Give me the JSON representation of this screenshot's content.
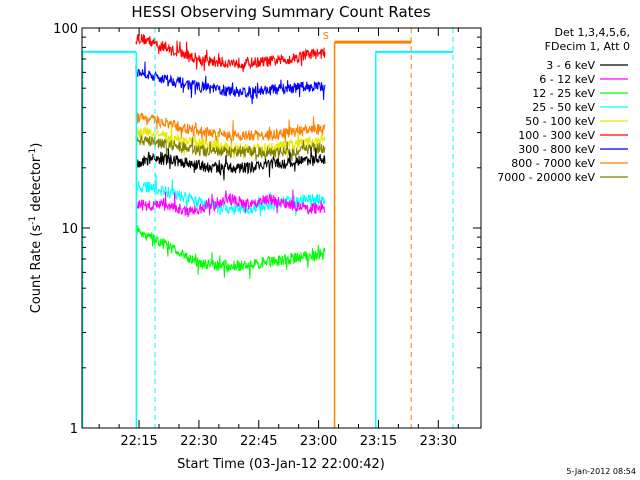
{
  "chart_data": {
    "type": "line",
    "title": "HESSI Observing Summary Count Rates",
    "xlabel": "Start Time (03-Jan-12 22:00:42)",
    "ylabel_main": "Count Rate (s",
    "ylabel_sup": "-1",
    "ylabel_tail": " detector",
    "ylabel_end": ")",
    "yscale": "log",
    "ylim": [
      1,
      100
    ],
    "xlim_minutes": [
      0,
      100
    ],
    "x_ticks": [
      {
        "label": "22:15",
        "value": 14.3
      },
      {
        "label": "22:30",
        "value": 29.3
      },
      {
        "label": "22:45",
        "value": 44.3
      },
      {
        "label": "23:00",
        "value": 59.3
      },
      {
        "label": "23:15",
        "value": 74.3
      },
      {
        "label": "23:30",
        "value": 89.3
      }
    ],
    "y_ticks": [
      {
        "label": "100",
        "value": 100
      },
      {
        "label": "10",
        "value": 10
      },
      {
        "label": "1",
        "value": 1
      }
    ],
    "legend": {
      "placement": "right-outside",
      "header1": "Det 1,3,4,5,6,",
      "header2": "FDecim 1, Att 0",
      "entries": [
        {
          "label": "3 - 6 keV",
          "color": "#000000"
        },
        {
          "label": "6 - 12 keV",
          "color": "#ff00ff"
        },
        {
          "label": "12 - 25 keV",
          "color": "#00ff00"
        },
        {
          "label": "25 - 50 keV",
          "color": "#00ffff"
        },
        {
          "label": "50 - 100 keV",
          "color": "#e8e800"
        },
        {
          "label": "100 - 300 keV",
          "color": "#ff0000"
        },
        {
          "label": "300 - 800 keV",
          "color": "#0000ff"
        },
        {
          "label": "800 - 7000 keV",
          "color": "#ff8000"
        },
        {
          "label": "7000 - 20000 keV",
          "color": "#808000"
        }
      ]
    },
    "series": [
      {
        "color": "#ff0000",
        "segments": [
          [
            13.5,
            90
          ],
          [
            17,
            86
          ],
          [
            22,
            78
          ],
          [
            27,
            72
          ],
          [
            32,
            68
          ],
          [
            37,
            67
          ],
          [
            42,
            67
          ],
          [
            47,
            68
          ],
          [
            52,
            70
          ],
          [
            57,
            74
          ],
          [
            61,
            75
          ]
        ]
      },
      {
        "color": "#0000ff",
        "segments": [
          [
            13.5,
            61
          ],
          [
            17,
            58
          ],
          [
            22,
            55
          ],
          [
            27,
            52
          ],
          [
            32,
            50
          ],
          [
            37,
            48
          ],
          [
            42,
            48
          ],
          [
            47,
            49
          ],
          [
            52,
            50
          ],
          [
            57,
            51
          ],
          [
            61,
            51
          ]
        ]
      },
      {
        "color": "#ff8000",
        "segments": [
          [
            13.5,
            36
          ],
          [
            17,
            35
          ],
          [
            22,
            33
          ],
          [
            27,
            31
          ],
          [
            32,
            30
          ],
          [
            37,
            29
          ],
          [
            42,
            29
          ],
          [
            47,
            29
          ],
          [
            52,
            30
          ],
          [
            57,
            31
          ],
          [
            61,
            31
          ]
        ]
      },
      {
        "color": "#e8e800",
        "segments": [
          [
            13.5,
            30
          ],
          [
            17,
            30
          ],
          [
            22,
            28
          ],
          [
            27,
            27
          ],
          [
            32,
            26
          ],
          [
            37,
            25
          ],
          [
            42,
            25
          ],
          [
            47,
            25
          ],
          [
            52,
            26
          ],
          [
            57,
            27
          ],
          [
            61,
            27
          ]
        ]
      },
      {
        "color": "#808000",
        "segments": [
          [
            13.5,
            28
          ],
          [
            17,
            27
          ],
          [
            22,
            26
          ],
          [
            27,
            25
          ],
          [
            32,
            24
          ],
          [
            37,
            24
          ],
          [
            42,
            24
          ],
          [
            47,
            24
          ],
          [
            52,
            24
          ],
          [
            57,
            25
          ],
          [
            61,
            25
          ]
        ]
      },
      {
        "color": "#000000",
        "segments": [
          [
            13.5,
            21
          ],
          [
            17,
            22
          ],
          [
            22,
            22
          ],
          [
            27,
            21
          ],
          [
            32,
            20
          ],
          [
            37,
            20
          ],
          [
            42,
            20
          ],
          [
            47,
            21
          ],
          [
            52,
            21
          ],
          [
            57,
            22
          ],
          [
            61,
            22
          ]
        ]
      },
      {
        "color": "#00ffff",
        "segments": [
          [
            13.5,
            16
          ],
          [
            17,
            16
          ],
          [
            22,
            15
          ],
          [
            27,
            14
          ],
          [
            32,
            13
          ],
          [
            37,
            12.5
          ],
          [
            42,
            12.5
          ],
          [
            47,
            13
          ],
          [
            52,
            13.5
          ],
          [
            57,
            14
          ],
          [
            61,
            14
          ]
        ]
      },
      {
        "color": "#ff00ff",
        "segments": [
          [
            13.5,
            13
          ],
          [
            17,
            13
          ],
          [
            22,
            13
          ],
          [
            27,
            12
          ],
          [
            32,
            13
          ],
          [
            37,
            14
          ],
          [
            42,
            13
          ],
          [
            47,
            14
          ],
          [
            52,
            13
          ],
          [
            57,
            12.5
          ],
          [
            61,
            12.5
          ]
        ]
      },
      {
        "color": "#00ff00",
        "segments": [
          [
            13.5,
            9.5
          ],
          [
            17,
            9
          ],
          [
            22,
            8
          ],
          [
            27,
            7
          ],
          [
            32,
            6.5
          ],
          [
            37,
            6.5
          ],
          [
            42,
            6.5
          ],
          [
            47,
            6.8
          ],
          [
            52,
            7
          ],
          [
            57,
            7.2
          ],
          [
            61,
            7.5
          ]
        ]
      }
    ],
    "markers": {
      "s_label": "S",
      "s_label_x": 63.3,
      "s_label_y": 92,
      "solid_orange_x": 63.3,
      "saa_bar": {
        "x1": 63.3,
        "x2": 82.5,
        "y": 85
      },
      "cyan_levels": [
        {
          "x1": 0,
          "x2": 13.5,
          "y": 76
        },
        {
          "x1": 73.5,
          "x2": 93,
          "y": 76
        }
      ],
      "cyan_solid": [
        0,
        13.5,
        73.5
      ],
      "cyan_dashed": [
        18.3,
        93
      ],
      "orange_dashed": [
        82.5
      ]
    },
    "footer": "5-Jan-2012 08:54"
  }
}
